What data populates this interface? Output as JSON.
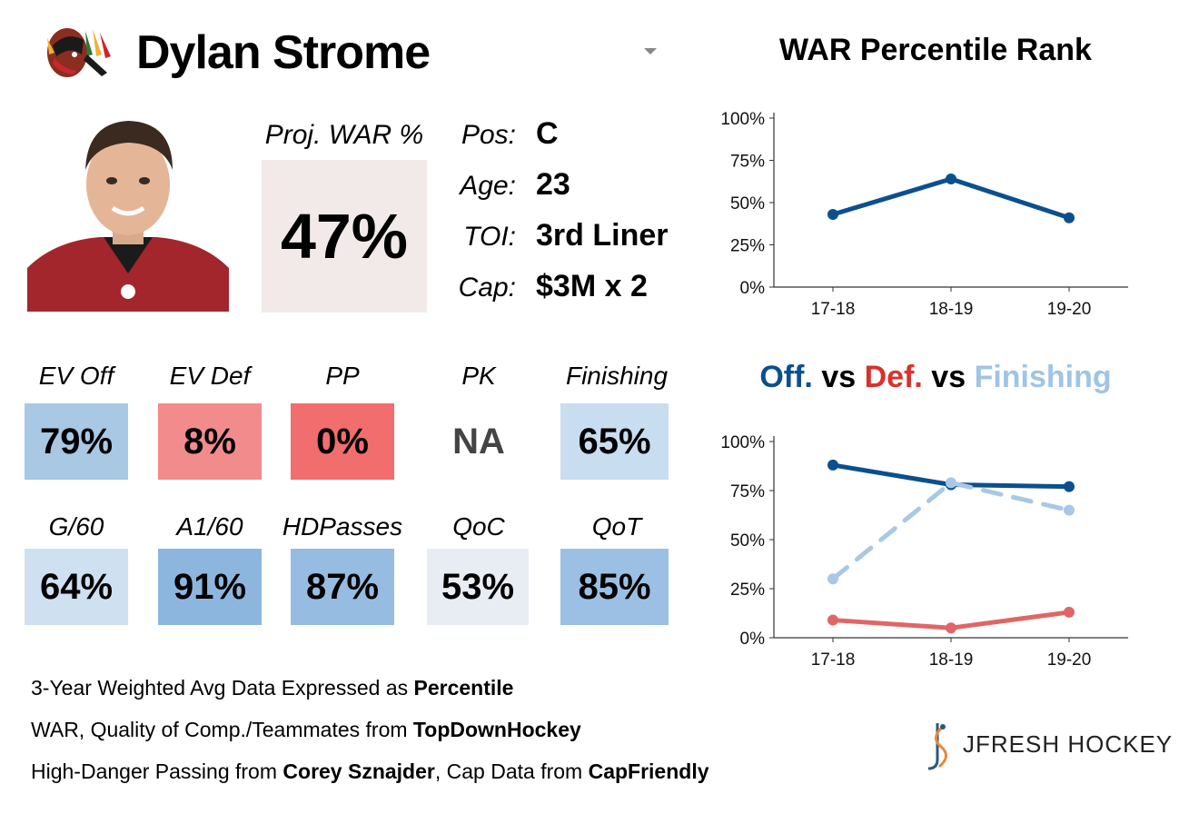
{
  "header": {
    "player_name": "Dylan Strome",
    "team_logo_icon": "blackhawks-logo-icon",
    "headshot_icon": "player-headshot-icon"
  },
  "projection": {
    "label": "Proj. WAR %",
    "value": "47%"
  },
  "info": [
    {
      "label": "Pos:",
      "value": "C"
    },
    {
      "label": "Age:",
      "value": "23"
    },
    {
      "label": "TOI:",
      "value": "3rd Liner"
    },
    {
      "label": "Cap:",
      "value": "$3M x 2"
    }
  ],
  "metrics": [
    {
      "label": "EV Off",
      "value": "79%",
      "color": "#a8c8e4"
    },
    {
      "label": "EV Def",
      "value": "8%",
      "color": "#f28c8c"
    },
    {
      "label": "PP",
      "value": "0%",
      "color": "#f26d6d"
    },
    {
      "label": "PK",
      "value": "NA",
      "color": "#ffffff",
      "text_color": "#444444"
    },
    {
      "label": "Finishing",
      "value": "65%",
      "color": "#c8ddef"
    },
    {
      "label": "G/60",
      "value": "64%",
      "color": "#cfe0f0"
    },
    {
      "label": "A1/60",
      "value": "91%",
      "color": "#8db6df"
    },
    {
      "label": "HDPasses",
      "value": "87%",
      "color": "#96bce2"
    },
    {
      "label": "QoC",
      "value": "53%",
      "color": "#e8edf3"
    },
    {
      "label": "QoT",
      "value": "85%",
      "color": "#9bc0e3"
    }
  ],
  "credits": [
    {
      "parts": [
        {
          "text": "3-Year Weighted Avg Data Expressed as ",
          "bold": false
        },
        {
          "text": "Percentile",
          "bold": true
        }
      ]
    },
    {
      "parts": [
        {
          "text": "WAR, Quality of Comp./Teammates from ",
          "bold": false
        },
        {
          "text": "TopDownHockey",
          "bold": true
        }
      ]
    },
    {
      "parts": [
        {
          "text": "High-Danger Passing from ",
          "bold": false
        },
        {
          "text": "Corey Sznajder",
          "bold": true
        },
        {
          "text": ", Cap Data from ",
          "bold": false
        },
        {
          "text": "CapFriendly",
          "bold": true
        }
      ]
    }
  ],
  "brand": {
    "text": "JFRESH HOCKEY",
    "icon": "jfresh-logo-icon"
  },
  "colors": {
    "dark_blue": "#0b4f8f",
    "red": "#d9312b",
    "light_blue": "#9fc4e6",
    "def_line": "#e06666"
  },
  "chart_data": [
    {
      "type": "line",
      "title": "WAR Percentile Rank",
      "categories": [
        "17-18",
        "18-19",
        "19-20"
      ],
      "y_ticks": [
        "0%",
        "25%",
        "50%",
        "75%",
        "100%"
      ],
      "ylim": [
        0,
        100
      ],
      "grid": false,
      "series": [
        {
          "values": [
            43,
            64,
            41
          ],
          "color": "#0b4f8f",
          "dashed": false
        }
      ]
    },
    {
      "type": "line",
      "title_parts": [
        {
          "text": "Off.",
          "color": "#0b4f8f"
        },
        {
          "text": " vs ",
          "color": "#000000"
        },
        {
          "text": "Def.",
          "color": "#d9312b"
        },
        {
          "text": " vs ",
          "color": "#000000"
        },
        {
          "text": "Finishing",
          "color": "#9fc4e6"
        }
      ],
      "categories": [
        "17-18",
        "18-19",
        "19-20"
      ],
      "y_ticks": [
        "0%",
        "25%",
        "50%",
        "75%",
        "100%"
      ],
      "ylim": [
        0,
        100
      ],
      "grid": false,
      "series": [
        {
          "values": [
            88,
            78,
            77
          ],
          "color": "#0b4f8f",
          "dashed": false
        },
        {
          "values": [
            30,
            79,
            65
          ],
          "color": "#a7c8e7",
          "dashed": true
        },
        {
          "values": [
            9,
            5,
            13
          ],
          "color": "#e06666",
          "dashed": false
        }
      ]
    }
  ]
}
